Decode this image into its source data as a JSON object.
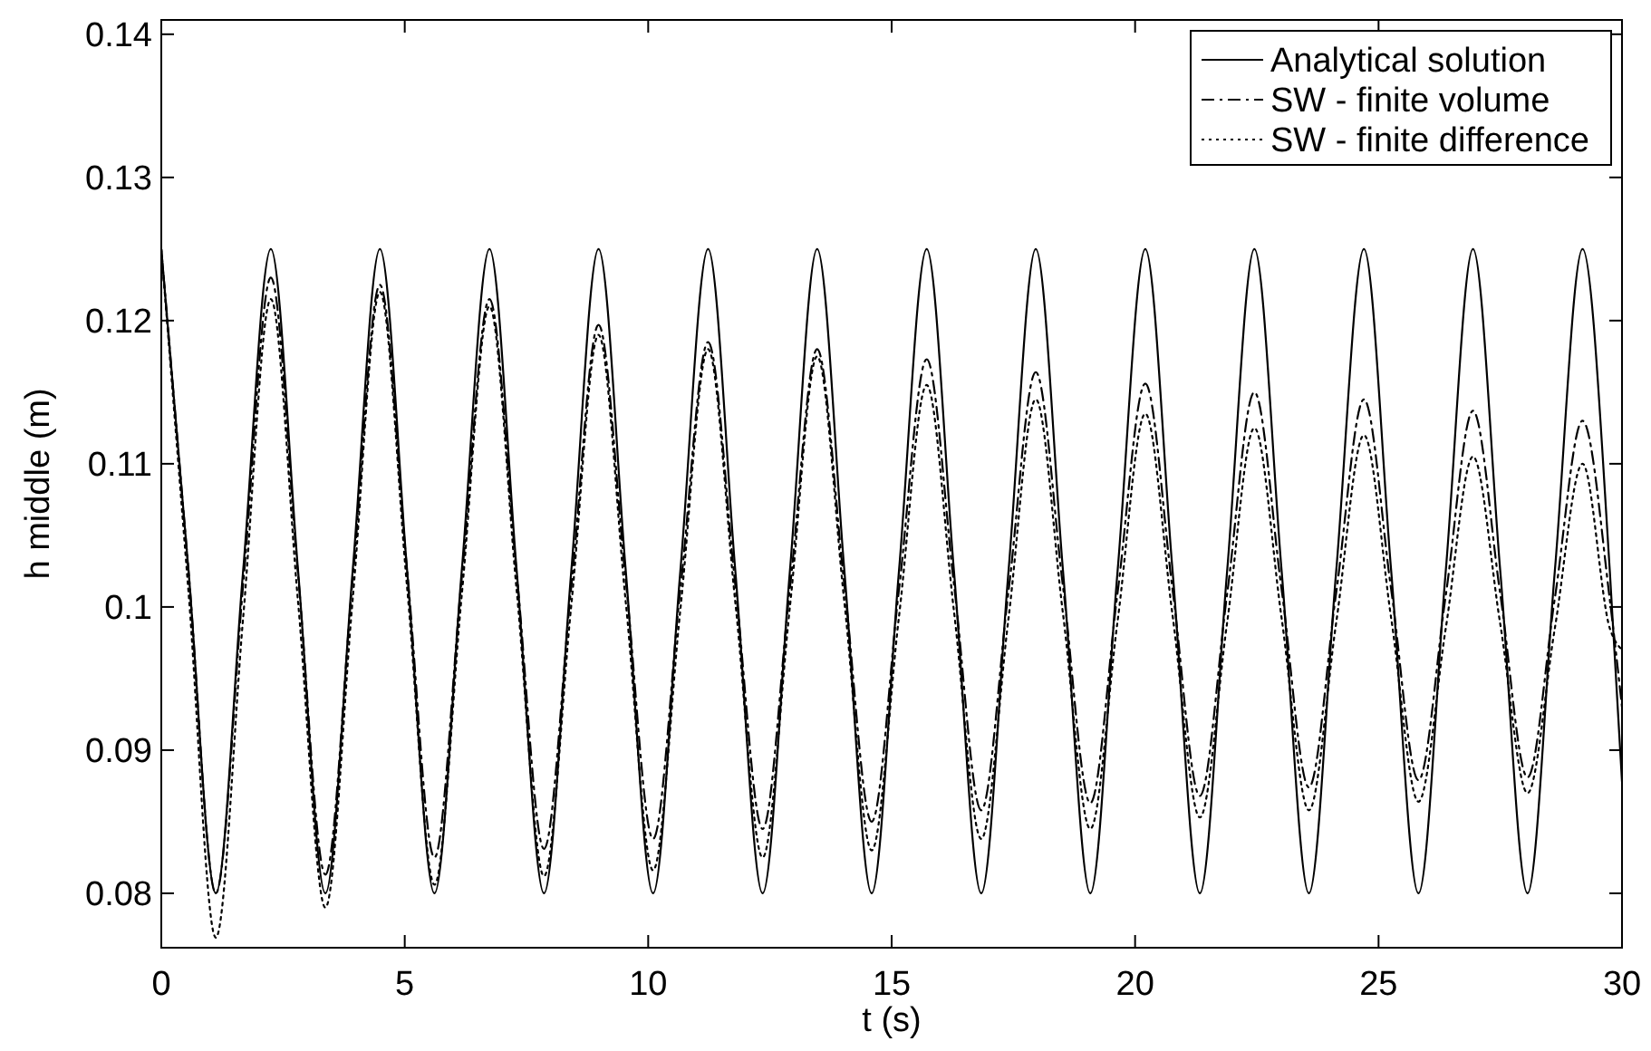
{
  "chart_data": {
    "type": "line",
    "xlabel": "t (s)",
    "ylabel": "h middle (m)",
    "x": [
      0,
      0.56,
      1.12,
      1.68,
      2.25,
      2.81,
      3.37,
      3.93,
      4.49,
      5.05,
      5.61,
      6.17,
      6.74,
      7.3,
      7.86,
      8.42,
      8.98,
      9.54,
      10.1,
      10.66,
      11.23,
      11.79,
      12.35,
      12.91,
      13.47,
      14.03,
      14.59,
      15.15,
      15.72,
      16.28,
      16.84,
      17.4,
      17.96,
      18.52,
      19.08,
      19.64,
      20.21,
      20.77,
      21.33,
      21.89,
      22.45,
      23.01,
      23.57,
      24.13,
      24.7,
      25.26,
      25.82,
      26.38,
      26.94,
      27.5,
      28.06,
      28.62,
      29.19,
      29.75,
      30
    ],
    "series": [
      {
        "name": "Analytical solution",
        "color": "#000000",
        "line_style": "solid",
        "values": [
          0.125,
          0.1025,
          0.08,
          0.1025,
          0.125,
          0.1025,
          0.08,
          0.1025,
          0.125,
          0.1025,
          0.08,
          0.1025,
          0.125,
          0.1025,
          0.08,
          0.1025,
          0.125,
          0.1025,
          0.08,
          0.1025,
          0.125,
          0.1025,
          0.08,
          0.1025,
          0.125,
          0.1025,
          0.08,
          0.1025,
          0.125,
          0.1025,
          0.08,
          0.1025,
          0.125,
          0.1025,
          0.08,
          0.1025,
          0.125,
          0.1025,
          0.08,
          0.1025,
          0.125,
          0.1025,
          0.08,
          0.1025,
          0.125,
          0.1025,
          0.08,
          0.1025,
          0.125,
          0.1025,
          0.08,
          0.1025,
          0.125,
          0.1025,
          0.0878
        ]
      },
      {
        "name": "SW - finite volume",
        "color": "#000000",
        "line_style": "dashdot",
        "values": [
          0.125,
          0.1025,
          0.08,
          0.1015,
          0.123,
          0.1022,
          0.0813,
          0.1019,
          0.1225,
          0.1025,
          0.0825,
          0.102,
          0.1215,
          0.1023,
          0.0831,
          0.1014,
          0.1197,
          0.1018,
          0.0838,
          0.1012,
          0.1185,
          0.1015,
          0.0845,
          0.1013,
          0.118,
          0.1015,
          0.085,
          0.1012,
          0.1173,
          0.1016,
          0.0858,
          0.1011,
          0.1164,
          0.1014,
          0.0863,
          0.101,
          0.1156,
          0.1012,
          0.0868,
          0.1009,
          0.115,
          0.1012,
          0.0874,
          0.101,
          0.1145,
          0.1012,
          0.0879,
          0.1008,
          0.1137,
          0.1009,
          0.0881,
          0.1006,
          0.113,
          0.1005,
          0.093
        ]
      },
      {
        "name": "SW - finite difference",
        "color": "#000000",
        "line_style": "dotted",
        "values": [
          0.125,
          0.101,
          0.0769,
          0.0992,
          0.1215,
          0.1003,
          0.079,
          0.1005,
          0.122,
          0.1013,
          0.0806,
          0.1008,
          0.121,
          0.1011,
          0.0812,
          0.1001,
          0.119,
          0.1003,
          0.0816,
          0.0998,
          0.118,
          0.1003,
          0.0825,
          0.1,
          0.1175,
          0.1003,
          0.083,
          0.0993,
          0.1155,
          0.0997,
          0.0838,
          0.0992,
          0.1145,
          0.0995,
          0.0845,
          0.099,
          0.1135,
          0.0994,
          0.0853,
          0.0989,
          0.1125,
          0.0992,
          0.0858,
          0.0989,
          0.112,
          0.0992,
          0.0864,
          0.0985,
          0.1105,
          0.0988,
          0.087,
          0.0985,
          0.11,
          0.0985,
          0.097
        ]
      }
    ],
    "xlim": [
      0,
      30
    ],
    "xticks": [
      0,
      5,
      10,
      15,
      20,
      25,
      30
    ],
    "ylim": [
      0.0762,
      0.141
    ],
    "yticks": [
      0.08,
      0.09,
      0.1,
      0.11,
      0.12,
      0.13,
      0.14
    ],
    "grid": false,
    "legend": "top right",
    "marker": "none"
  }
}
